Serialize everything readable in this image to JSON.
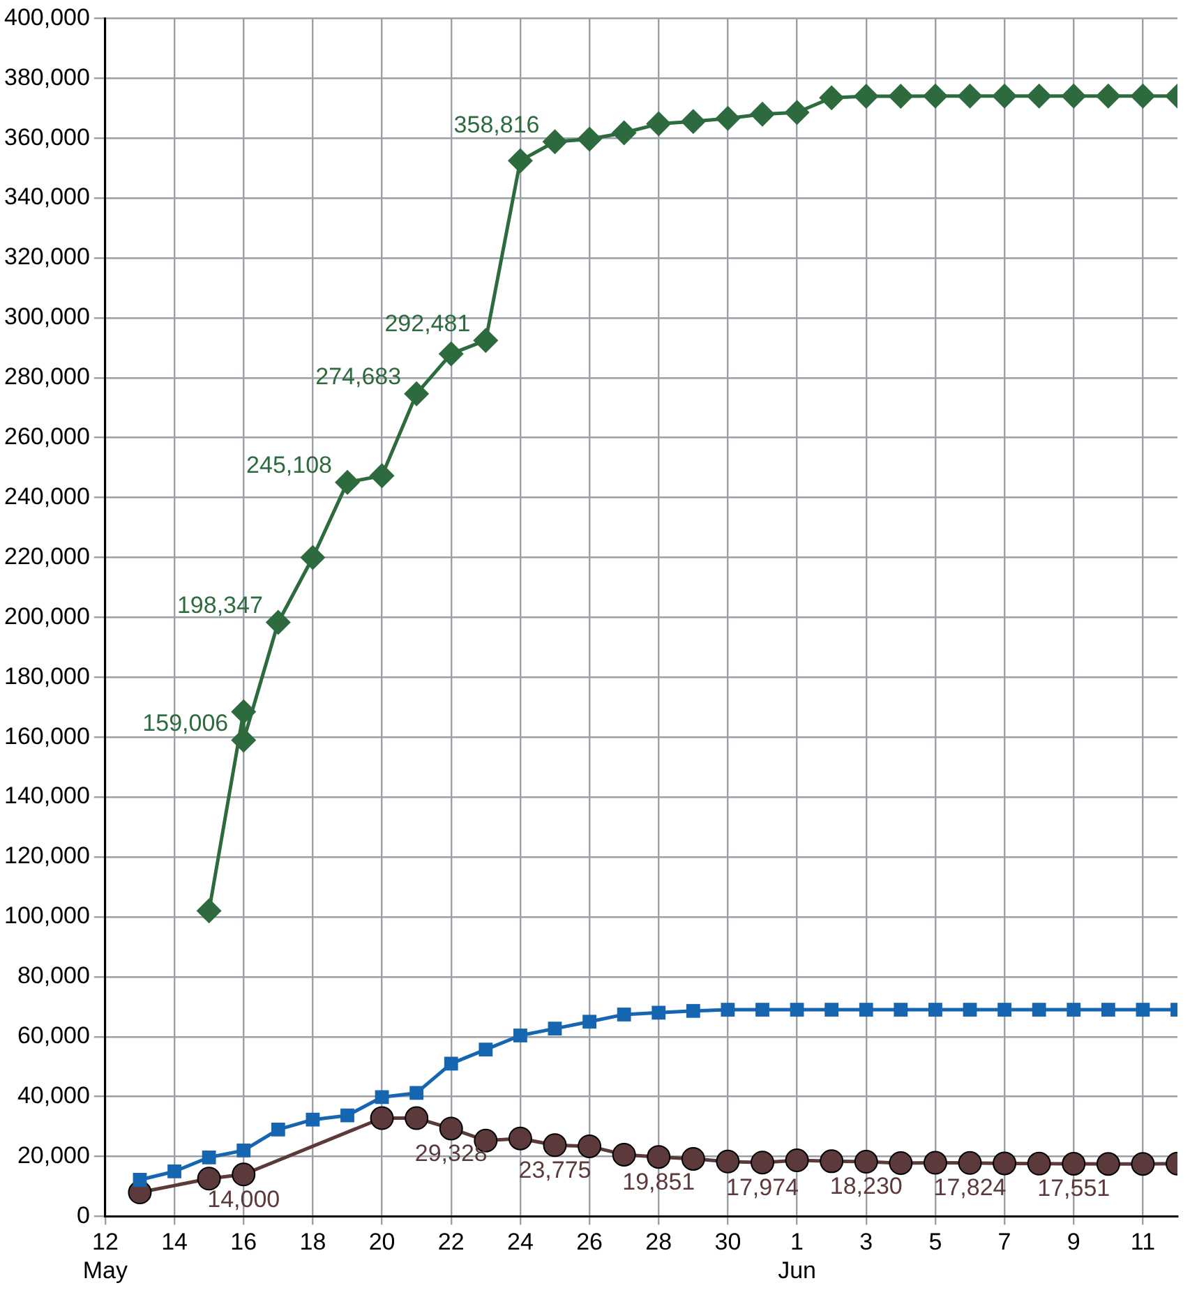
{
  "chart_data": {
    "type": "line",
    "x": [
      "--05-15",
      "--05-16",
      "--05-16",
      "--05-17",
      "--05-18",
      "--05-19",
      "--05-20",
      "--05-21",
      "--05-22",
      "--05-23",
      "--05-24",
      "--05-25",
      "--05-26",
      "--05-27",
      "--05-28",
      "--05-29",
      "--05-30",
      "--05-31",
      "--06-01",
      "--06-02",
      "--06-03",
      "--06-04",
      "--06-05",
      "--06-06",
      "--06-07",
      "--06-08",
      "--06-09",
      "--06-10",
      "--06-11",
      "--06-12"
    ],
    "series": [
      {
        "color": "#2d6a3e",
        "marker": "diamond",
        "values": [
          102000,
          168500,
          159006,
          198347,
          220000,
          245108,
          247300,
          274683,
          288000,
          292481,
          352500,
          358816,
          359700,
          361800,
          364800,
          365600,
          366600,
          368000,
          368600,
          373500,
          374000,
          374000,
          374100,
          374100,
          374100,
          374100,
          374100,
          374100,
          374100,
          374100
        ],
        "value_labels": [
          null,
          null,
          "159,006",
          "198,347",
          null,
          "245,108",
          null,
          "274,683",
          null,
          "292,481",
          null,
          "358,816",
          null,
          null,
          null,
          null,
          null,
          null,
          null,
          null,
          null,
          null,
          null,
          null,
          null,
          null,
          null,
          null,
          null,
          null
        ]
      },
      {
        "color": "#1565b0",
        "marker": "square",
        "x": [
          "--05-13",
          "--05-14",
          "--05-15",
          "--05-16",
          "--05-17",
          "--05-18",
          "--05-19",
          "--05-20",
          "--05-21",
          "--05-22",
          "--05-23",
          "--05-24",
          "--05-25",
          "--05-26",
          "--05-27",
          "--05-28",
          "--05-29",
          "--05-30",
          "--05-31",
          "--06-01",
          "--06-02",
          "--06-03",
          "--06-04",
          "--06-05",
          "--06-06",
          "--06-07",
          "--06-08",
          "--06-09",
          "--06-10",
          "--06-11",
          "--06-12"
        ],
        "values": [
          12200,
          15000,
          19700,
          22000,
          29000,
          32300,
          33700,
          39800,
          41200,
          51000,
          55700,
          60400,
          62700,
          65000,
          67400,
          68000,
          68600,
          69000,
          69000,
          69000,
          69000,
          69000,
          69000,
          69000,
          69000,
          69000,
          69000,
          69000,
          69000,
          69000,
          69000
        ]
      },
      {
        "color": "#5c3a3c",
        "marker": "circle",
        "x": [
          "--05-13",
          "--05-15",
          "--05-16",
          "--05-20",
          "--05-21",
          "--05-22",
          "--05-23",
          "--05-24",
          "--05-25",
          "--05-26",
          "--05-27",
          "--05-28",
          "--05-29",
          "--05-30",
          "--05-31",
          "--06-01",
          "--06-02",
          "--06-03",
          "--06-04",
          "--06-05",
          "--06-06",
          "--06-07",
          "--06-08",
          "--06-09",
          "--06-10",
          "--06-11",
          "--06-12"
        ],
        "values": [
          8000,
          12600,
          14000,
          32800,
          32800,
          29328,
          25300,
          26000,
          23775,
          23400,
          20600,
          19851,
          19200,
          18300,
          17974,
          18700,
          18400,
          18230,
          17800,
          17900,
          17824,
          17700,
          17600,
          17551,
          17500,
          17500,
          17600
        ],
        "value_labels": [
          null,
          null,
          "14,000",
          null,
          null,
          "29,328",
          null,
          null,
          "23,775",
          null,
          null,
          "19,851",
          null,
          null,
          "17,974",
          null,
          null,
          "18,230",
          null,
          null,
          "17,824",
          null,
          null,
          "17,551",
          null,
          null,
          null
        ]
      }
    ],
    "xlim": [
      "--05-12",
      "--06-12"
    ],
    "xticks": [
      {
        "value": "--05-12",
        "label": "12 May"
      },
      {
        "value": "--05-14",
        "label": "14"
      },
      {
        "value": "--05-16",
        "label": "16"
      },
      {
        "value": "--05-18",
        "label": "18"
      },
      {
        "value": "--05-20",
        "label": "20"
      },
      {
        "value": "--05-22",
        "label": "22"
      },
      {
        "value": "--05-24",
        "label": "24"
      },
      {
        "value": "--05-26",
        "label": "26"
      },
      {
        "value": "--05-28",
        "label": "28"
      },
      {
        "value": "--05-30",
        "label": "30"
      },
      {
        "value": "--06-01",
        "label": "1 Jun"
      },
      {
        "value": "--06-03",
        "label": "3"
      },
      {
        "value": "--06-05",
        "label": "5"
      },
      {
        "value": "--06-07",
        "label": "7"
      },
      {
        "value": "--06-09",
        "label": "9"
      },
      {
        "value": "--06-11",
        "label": "11"
      }
    ],
    "ylim": [
      0,
      400000
    ],
    "yticks": [
      0,
      {
        "value": 20000,
        "label": "20,000"
      },
      {
        "value": 40000,
        "label": "40,000"
      },
      {
        "value": 60000,
        "label": "60,000"
      },
      {
        "value": 80000,
        "label": "80,000"
      },
      {
        "value": 100000,
        "label": "100,000"
      },
      {
        "value": 120000,
        "label": "120,000"
      },
      {
        "value": 140000,
        "label": "140,000"
      },
      {
        "value": 160000,
        "label": "160,000"
      },
      {
        "value": 180000,
        "label": "180,000"
      },
      {
        "value": 200000,
        "label": "200,000"
      },
      {
        "value": 220000,
        "label": "220,000"
      },
      {
        "value": 240000,
        "label": "240,000"
      },
      {
        "value": 260000,
        "label": "260,000"
      },
      {
        "value": 280000,
        "label": "280,000"
      },
      {
        "value": 300000,
        "label": "300,000"
      },
      {
        "value": 320000,
        "label": "320,000"
      },
      {
        "value": 340000,
        "label": "340,000"
      },
      {
        "value": 360000,
        "label": "360,000"
      },
      {
        "value": 380000,
        "label": "380,000"
      },
      {
        "value": 400000,
        "label": "400,000"
      }
    ],
    "grid": true,
    "legend": false,
    "line_style": "solid"
  }
}
